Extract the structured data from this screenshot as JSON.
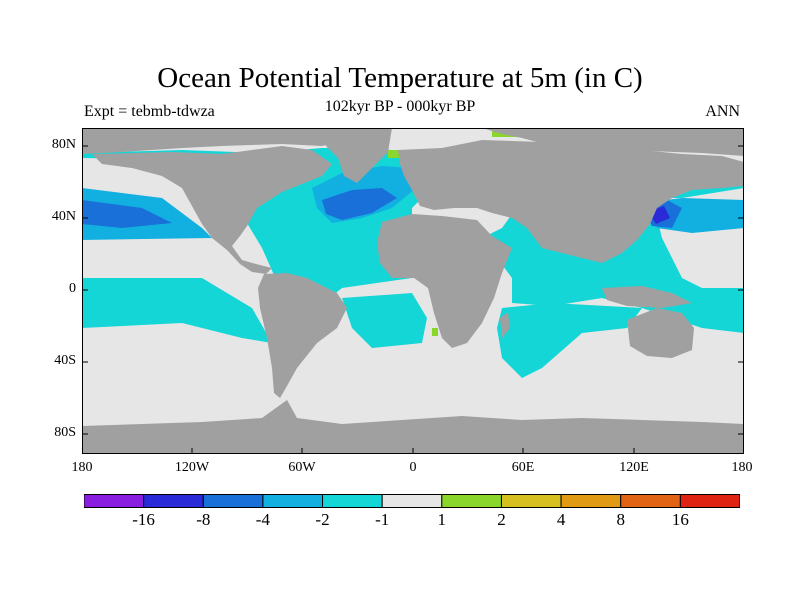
{
  "title": "Ocean Potential Temperature at 5m (in C)",
  "subtitle": "102kyr BP - 000kyr BP",
  "experiment": "Expt = tebmb-tdwza",
  "season": "ANN",
  "lat_labels": [
    "80N",
    "40N",
    "0",
    "40S",
    "80S"
  ],
  "lat_values": [
    80,
    40,
    0,
    -40,
    -80
  ],
  "lon_labels": [
    "180",
    "120W",
    "60W",
    "0",
    "60E",
    "120E",
    "180"
  ],
  "lon_values": [
    -180,
    -120,
    -60,
    0,
    60,
    120,
    180
  ],
  "colorbar": {
    "colors": [
      "#8a1ee0",
      "#2a2ad8",
      "#1870d8",
      "#12b0e0",
      "#14d6d6",
      "#e6e6e6",
      "#8ad62a",
      "#d6c020",
      "#e09a14",
      "#e06414",
      "#e02414"
    ],
    "labels": [
      "-16",
      "-8",
      "-4",
      "-2",
      "-1",
      "1",
      "2",
      "4",
      "8",
      "16"
    ]
  },
  "legend_colors": {
    "land": "#a0a0a0",
    "neutral": "#e6e6e6",
    "cool_light": "#14d6d6",
    "cool_medium": "#12b0e0",
    "cool_strong": "#1870d8",
    "cool_extreme": "#2a2ad8",
    "warm_light": "#8ad62a"
  }
}
